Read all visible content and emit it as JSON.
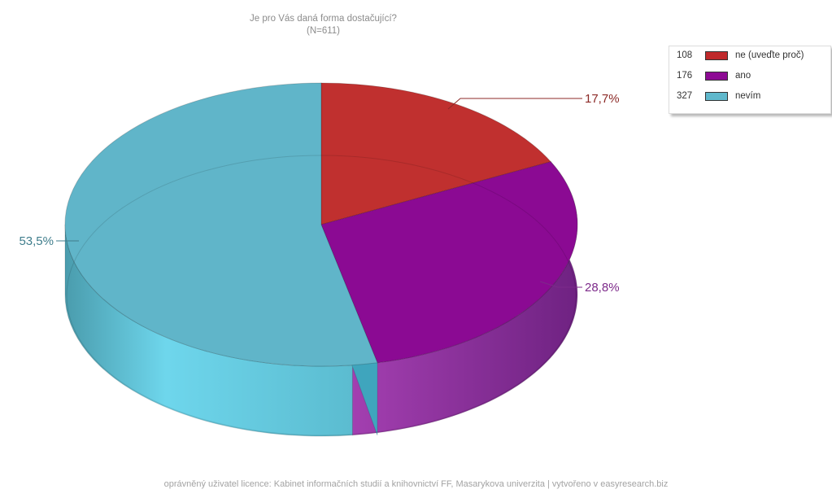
{
  "chart_data": {
    "type": "pie",
    "title": "Je pro Vás daná forma dostačující?",
    "subtitle": "(N=611)",
    "slices": [
      {
        "label": "ne (uveďte proč)",
        "count": 108,
        "percent_label": "17,7%",
        "color": "#c0292b"
      },
      {
        "label": "ano",
        "count": 176,
        "percent_label": "28,8%",
        "color": "#8d0a94"
      },
      {
        "label": "nevím",
        "count": 327,
        "percent_label": "53,5%",
        "color": "#5fb8cc"
      }
    ],
    "legend_position": "top-right"
  },
  "footer": "oprávněný uživatel licence: Kabinet informačních studií a knihovnictví FF, Masarykova univerzita | vytvořeno v easyresearch.biz"
}
